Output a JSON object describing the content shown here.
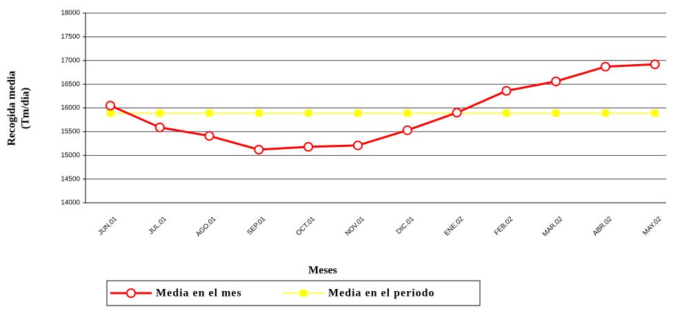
{
  "chart_data": {
    "type": "line",
    "x_label": "Meses",
    "y_label": [
      "Recogida media",
      "(Tm/dia)"
    ],
    "categories": [
      "JUN.01",
      "JUL.01",
      "AGO.01",
      "SEP.01",
      "OCT.01",
      "NOV.01",
      "DIC.01",
      "ENE.02",
      "FEB.02",
      "MAR.02",
      "ABR.02",
      "MAY.02"
    ],
    "series": [
      {
        "name": "Media en el mes",
        "color": "#ff0000",
        "marker": "circle",
        "values": [
          16050,
          15590,
          15410,
          15120,
          15180,
          15210,
          15530,
          15900,
          16360,
          16560,
          16870,
          16920
        ]
      },
      {
        "name": "Media en el periodo",
        "color": "#ffff00",
        "marker": "square",
        "values": [
          15890,
          15890,
          15890,
          15890,
          15890,
          15890,
          15890,
          15890,
          15890,
          15890,
          15890,
          15890
        ]
      }
    ],
    "ylim": [
      14000,
      18000
    ],
    "yticks": [
      14000,
      14500,
      15000,
      15500,
      16000,
      16500,
      17000,
      17500,
      18000
    ],
    "grid": true
  }
}
